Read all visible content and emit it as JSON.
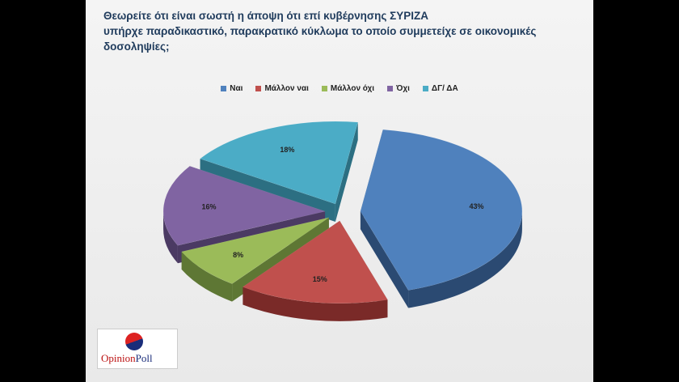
{
  "title_lines": [
    "Θεωρείτε ότι είναι σωστή η άποψη ότι επί κυβέρνησης ΣΥΡΙΖΑ",
    "υπήρχε  παραδικαστικό, παρακρατικό  κύκλωμα  το οποίο συμμετείχε σε οικονομικές",
    "δοσοληψίες;"
  ],
  "chart_data": {
    "type": "pie",
    "title": "Θεωρείτε ότι είναι σωστή η άποψη ότι επί κυβέρνησης ΣΥΡΙΖΑ υπήρχε  παραδικαστικό, παρακρατικό  κύκλωμα  το οποίο συμμετείχε σε οικονομικές δοσοληψίες;",
    "categories": [
      "Ναι",
      "Μάλλον ναι",
      "Μάλλον όχι",
      "Όχι",
      "ΔΓ/ ΔΑ"
    ],
    "values": [
      43,
      15,
      8,
      16,
      18
    ],
    "value_labels": [
      "43%",
      "15%",
      "8%",
      "16%",
      "18%"
    ],
    "colors": [
      "#4f81bd",
      "#c0504d",
      "#9bbb59",
      "#8064a2",
      "#4bacc6"
    ],
    "side_colors": [
      "#2b4a72",
      "#7a2a28",
      "#5e7734",
      "#4b3a63",
      "#2c6f82"
    ],
    "legend_position": "top",
    "style": "3d-exploded"
  },
  "logo": {
    "opinion": "Opinion",
    "poll": "Poll"
  }
}
